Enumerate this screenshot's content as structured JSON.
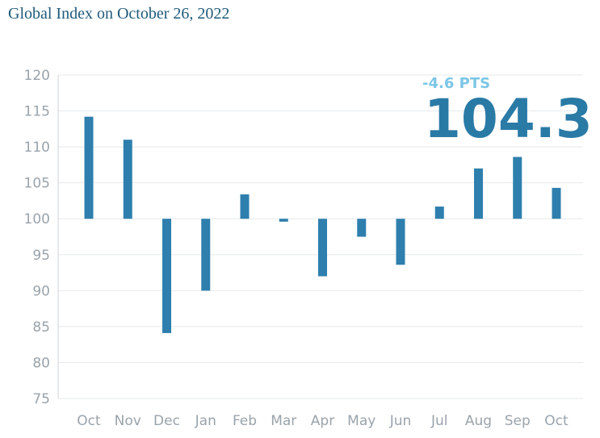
{
  "title": "Global Index on October 26, 2022",
  "callout": {
    "change": "-4.6 PTS",
    "value": "104.3"
  },
  "colors": {
    "bar": "#2e7fad",
    "grid": "#e6e8ea",
    "axis": "#cfd3d7",
    "title": "#1f5a7a"
  },
  "chart_data": {
    "type": "bar",
    "title": "Global Index on October 26, 2022",
    "baseline": 100,
    "categories": [
      "Oct",
      "Nov",
      "Dec",
      "Jan",
      "Feb",
      "Mar",
      "Apr",
      "May",
      "Jun",
      "Jul",
      "Aug",
      "Sep",
      "Oct"
    ],
    "values": [
      114.2,
      111,
      84.1,
      90,
      103.4,
      99.6,
      92,
      97.5,
      93.6,
      101.7,
      107,
      108.6,
      104.3
    ],
    "yticks": [
      120,
      115,
      110,
      105,
      100,
      95,
      90,
      85,
      80,
      75
    ],
    "ylim": [
      75,
      120
    ],
    "xlabel": "",
    "ylabel": "",
    "grid": true
  }
}
